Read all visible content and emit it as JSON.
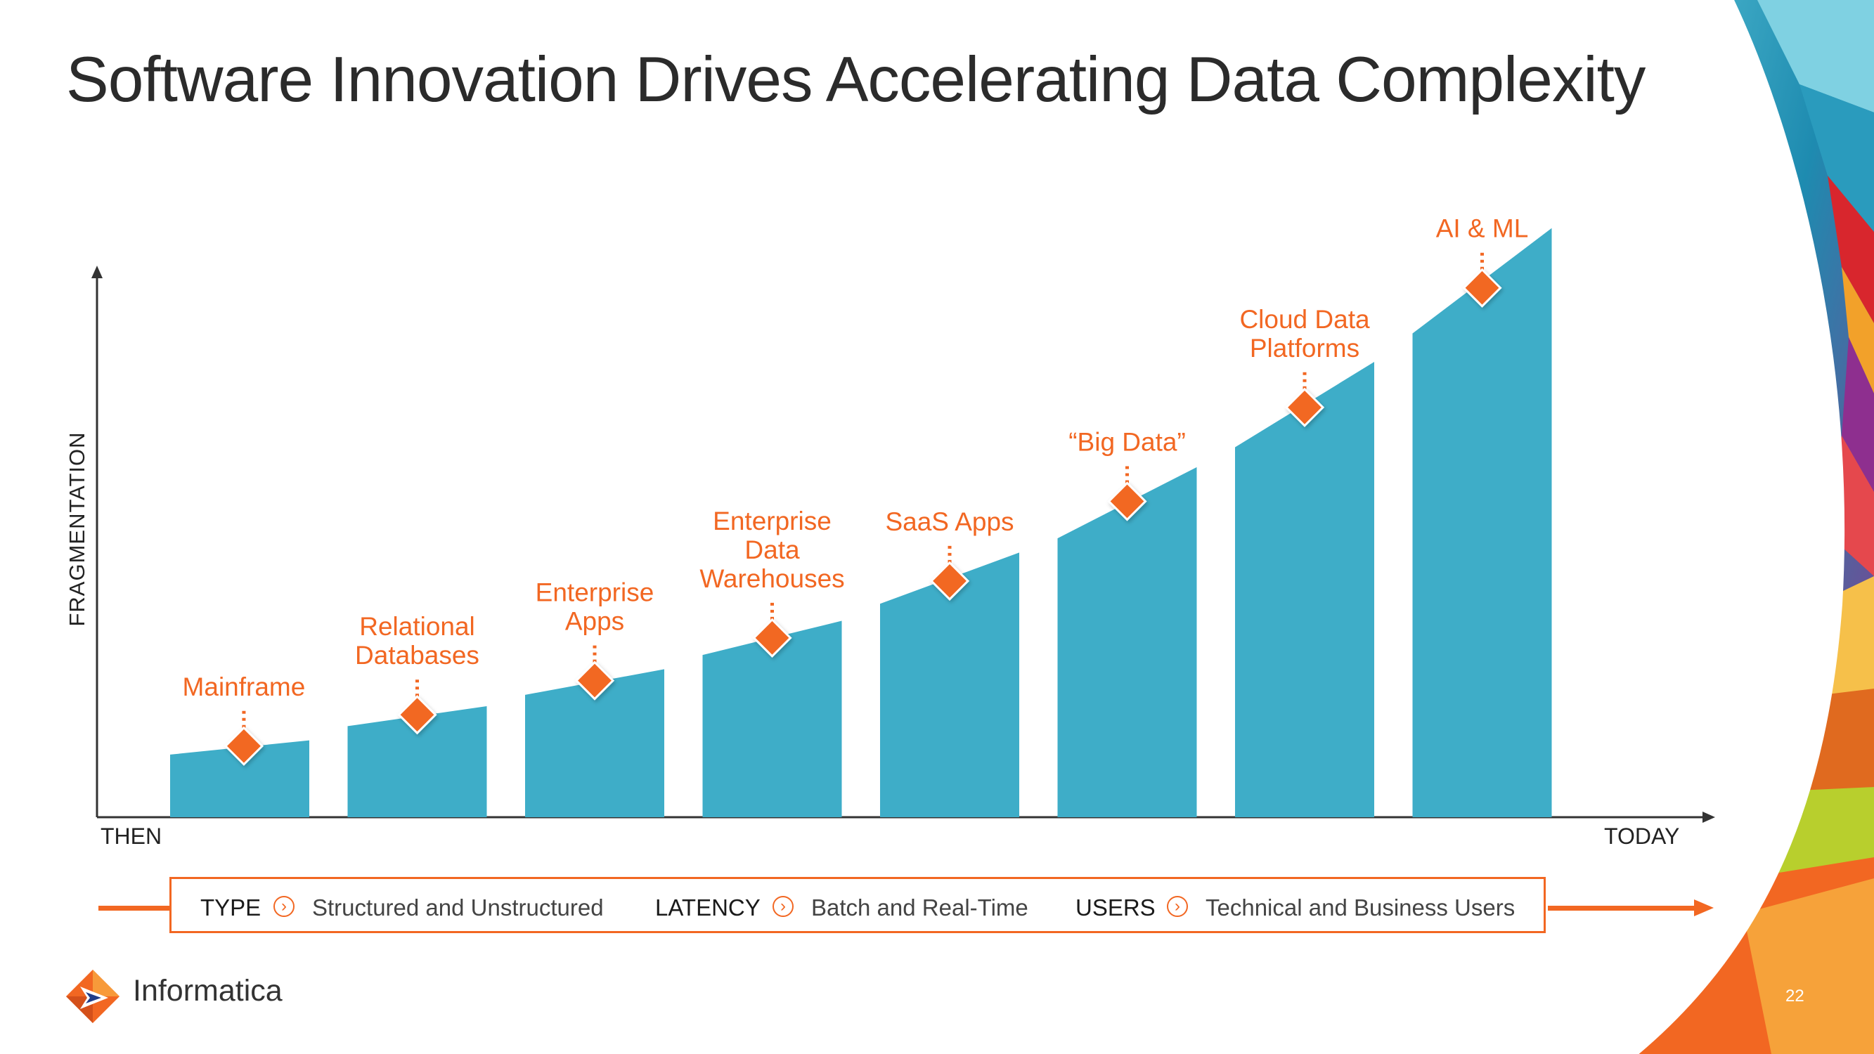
{
  "title": "Software Innovation Drives Accelerating Data Complexity",
  "chart_data": {
    "type": "bar",
    "title": "Software Innovation Drives Accelerating Data Complexity",
    "ylabel": "FRAGMENTATION",
    "xlabel_start": "THEN",
    "xlabel_end": "TODAY",
    "ylim": [
      0,
      100
    ],
    "bar_color": "#3eadc8",
    "marker_color": "#f26722",
    "bars": [
      {
        "label": [
          "Mainframe"
        ],
        "start": 11,
        "end": 13.5,
        "marker": 12.5
      },
      {
        "label": [
          "Relational",
          "Databases"
        ],
        "start": 16,
        "end": 19.5,
        "marker": 18
      },
      {
        "label": [
          "Enterprise",
          "Apps"
        ],
        "start": 21.5,
        "end": 26,
        "marker": 24
      },
      {
        "label": [
          "Enterprise",
          "Data",
          "Warehouses"
        ],
        "start": 28.5,
        "end": 34.5,
        "marker": 31.5
      },
      {
        "label": [
          "SaaS Apps"
        ],
        "start": 37.5,
        "end": 46.5,
        "marker": 41.5
      },
      {
        "label": [
          "“Big Data”"
        ],
        "start": 49,
        "end": 61.5,
        "marker": 55.5
      },
      {
        "label": [
          "Cloud Data",
          "Platforms"
        ],
        "start": 65,
        "end": 80,
        "marker": 72
      },
      {
        "label": [
          "AI & ML"
        ],
        "start": 85,
        "end": 103.5,
        "marker": 93
      }
    ]
  },
  "legend": [
    {
      "key": "TYPE",
      "value": "Structured and Unstructured"
    },
    {
      "key": "LATENCY",
      "value": "Batch and Real-Time"
    },
    {
      "key": "USERS",
      "value": "Technical and Business Users"
    }
  ],
  "legend_icon": "chevron-right-circle-icon",
  "logo": {
    "name": "informatica-logo-icon",
    "text": "Informatica"
  },
  "page_number": "22",
  "colors": {
    "accent": "#f26722",
    "bar": "#3eadc8",
    "text": "#2b2b2b"
  }
}
